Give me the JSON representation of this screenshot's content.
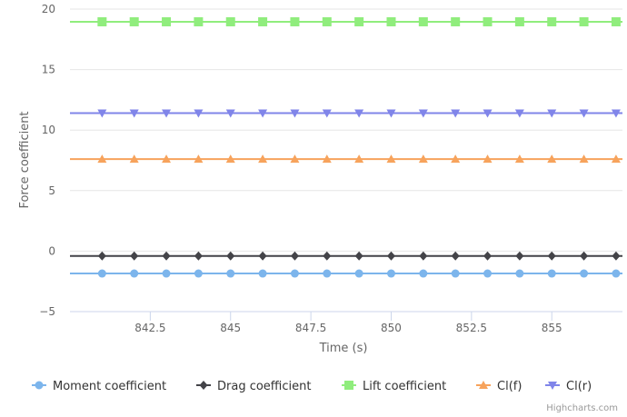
{
  "chart_data": {
    "type": "line",
    "title": "",
    "xlabel": "Time (s)",
    "ylabel": "Force coefficient",
    "xlim": [
      840,
      857.2
    ],
    "ylim": [
      -5,
      20
    ],
    "xticks": [
      "842.5",
      "845",
      "847.5",
      "850",
      "852.5",
      "855"
    ],
    "yticks": [
      "−5",
      "0",
      "5",
      "10",
      "15",
      "20"
    ],
    "grid": "horizontal",
    "legend": "bottom",
    "x": [
      841,
      842,
      843,
      844,
      845,
      846,
      847,
      848,
      849,
      850,
      851,
      852,
      853,
      854,
      855,
      856,
      857
    ],
    "series": [
      {
        "name": "Moment coefficient",
        "color": "#7cb5ec",
        "marker": "circle",
        "values": [
          -1.85,
          -1.85,
          -1.85,
          -1.85,
          -1.85,
          -1.85,
          -1.85,
          -1.85,
          -1.85,
          -1.85,
          -1.85,
          -1.85,
          -1.85,
          -1.85,
          -1.85,
          -1.85,
          -1.85
        ]
      },
      {
        "name": "Drag coefficient",
        "color": "#434348",
        "marker": "diamond",
        "values": [
          -0.4,
          -0.4,
          -0.4,
          -0.4,
          -0.4,
          -0.4,
          -0.4,
          -0.4,
          -0.4,
          -0.4,
          -0.4,
          -0.4,
          -0.4,
          -0.4,
          -0.4,
          -0.4,
          -0.4
        ]
      },
      {
        "name": "Lift coefficient",
        "color": "#90ed7d",
        "marker": "square",
        "values": [
          18.95,
          18.95,
          18.95,
          18.95,
          18.95,
          18.95,
          18.95,
          18.95,
          18.95,
          18.95,
          18.95,
          18.95,
          18.95,
          18.95,
          18.95,
          18.95,
          18.95
        ]
      },
      {
        "name": "Cl(f)",
        "color": "#f7a35c",
        "marker": "triangle",
        "values": [
          7.6,
          7.6,
          7.6,
          7.6,
          7.6,
          7.6,
          7.6,
          7.6,
          7.6,
          7.6,
          7.6,
          7.6,
          7.6,
          7.6,
          7.6,
          7.6,
          7.6
        ]
      },
      {
        "name": "Cl(r)",
        "color": "#8085e9",
        "marker": "triangle-down",
        "values": [
          11.4,
          11.4,
          11.4,
          11.4,
          11.4,
          11.4,
          11.4,
          11.4,
          11.4,
          11.4,
          11.4,
          11.4,
          11.4,
          11.4,
          11.4,
          11.4,
          11.4
        ]
      }
    ]
  },
  "credits": "Highcharts.com"
}
